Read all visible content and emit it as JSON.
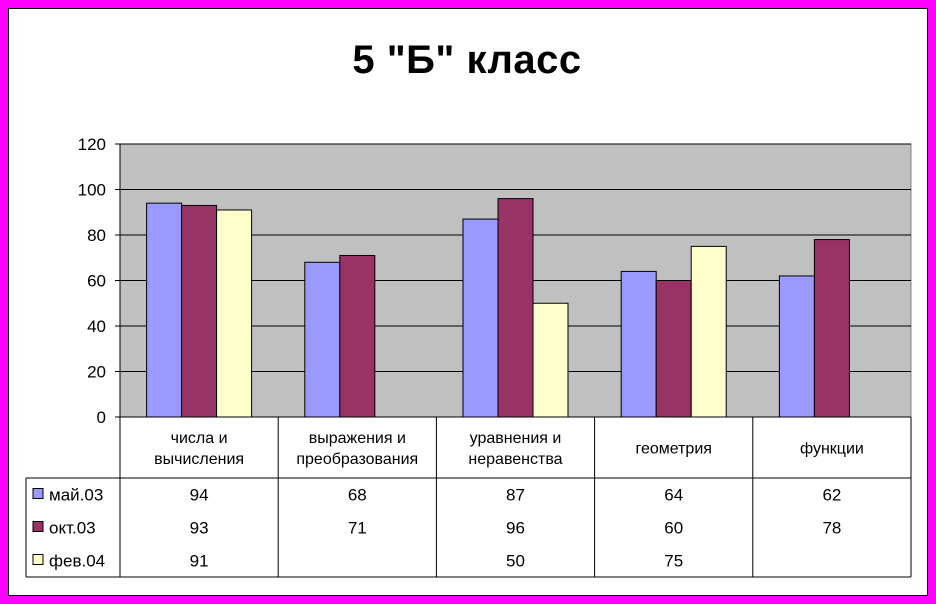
{
  "chart_data": {
    "type": "bar",
    "title": "5 \"Б\" класс",
    "xlabel": "",
    "ylabel": "",
    "ylim": [
      0,
      120
    ],
    "yticks": [
      0,
      20,
      40,
      60,
      80,
      100,
      120
    ],
    "grid": true,
    "categories": [
      [
        "числа и",
        "вычисления"
      ],
      [
        "выражения и",
        "преобразования"
      ],
      [
        "уравнения и",
        "неравенства"
      ],
      [
        "геометрия"
      ],
      [
        "функции"
      ]
    ],
    "series": [
      {
        "name": "май.03",
        "color": "#9999ff",
        "values": [
          94,
          68,
          87,
          64,
          62
        ]
      },
      {
        "name": "окт.03",
        "color": "#993366",
        "values": [
          93,
          71,
          96,
          60,
          78
        ]
      },
      {
        "name": "фев.04",
        "color": "#ffffcc",
        "values": [
          91,
          null,
          50,
          75,
          null
        ]
      }
    ],
    "plot_background": "#c0c0c0",
    "page_background": "#ff00ff",
    "legend_placement": "data-table"
  }
}
